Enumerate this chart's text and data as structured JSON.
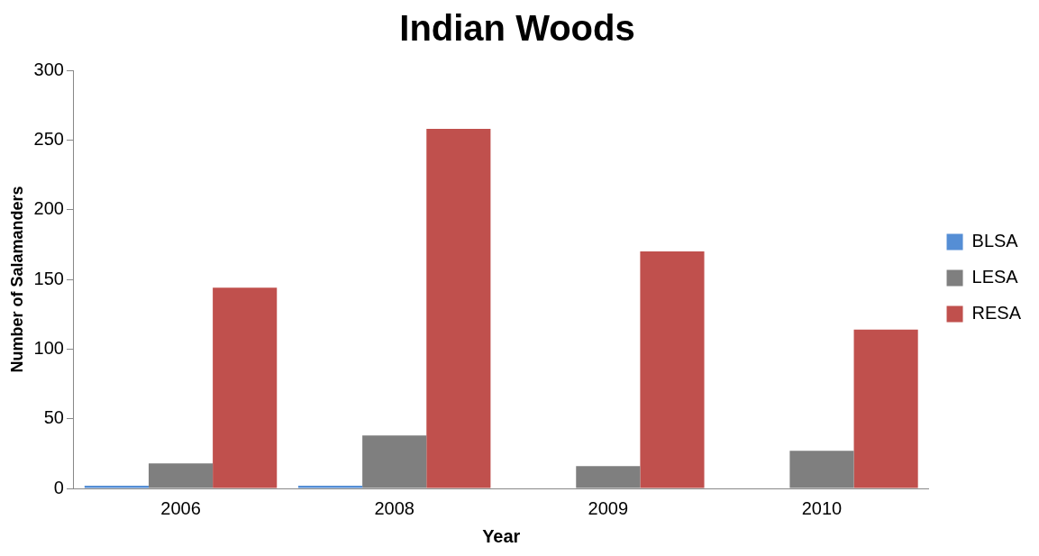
{
  "chart_data": {
    "type": "bar",
    "title": "Indian Woods",
    "xlabel": "Year",
    "ylabel": "Number of Salamanders",
    "categories": [
      "2006",
      "2008",
      "2009",
      "2010"
    ],
    "series": [
      {
        "name": "BLSA",
        "color": "#558ed5",
        "values": [
          2,
          2,
          0,
          0
        ]
      },
      {
        "name": "LESA",
        "color": "#7f7f7f",
        "values": [
          18,
          38,
          16,
          27
        ]
      },
      {
        "name": "RESA",
        "color": "#c0504d",
        "values": [
          144,
          258,
          170,
          114
        ]
      }
    ],
    "ylim": [
      0,
      300
    ],
    "yticks": [
      0,
      50,
      100,
      150,
      200,
      250,
      300
    ],
    "grid": false,
    "legend": "right"
  }
}
